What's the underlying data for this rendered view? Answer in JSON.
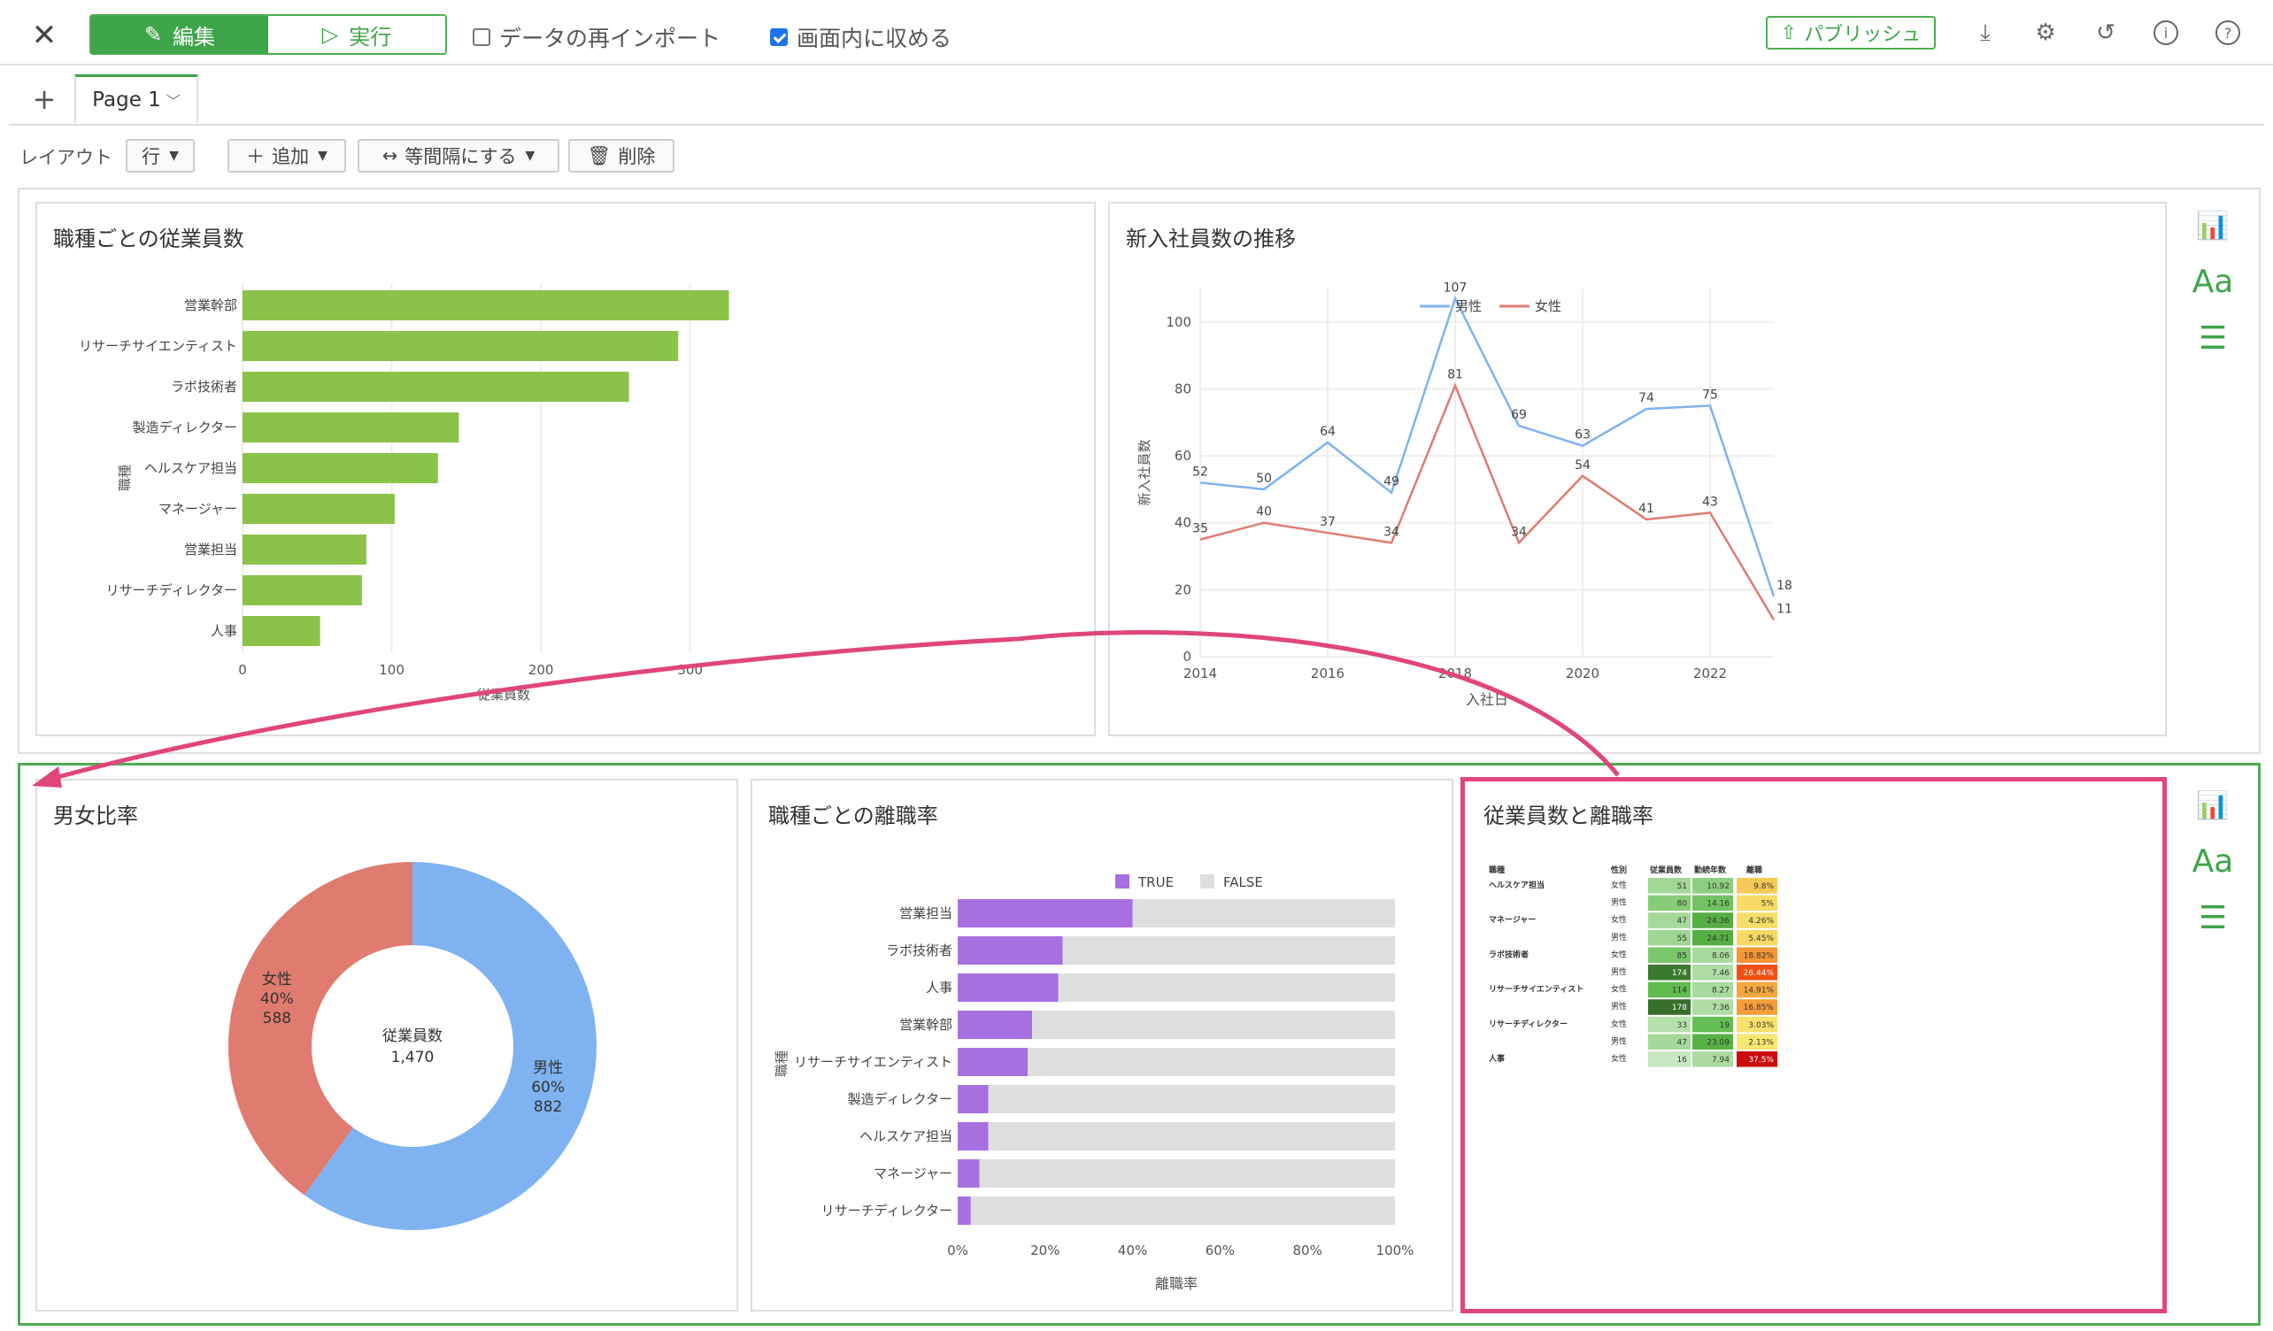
{
  "toolbar": {
    "close_icon": "close-icon",
    "edit_label": "編集",
    "run_label": "実行",
    "reimport_label": "データの再インポート",
    "reimport_checked": false,
    "fit_label": "画面内に収める",
    "fit_checked": true,
    "publish_label": "パブリッシュ",
    "icons": [
      "download-icon",
      "gear-icon",
      "history-icon",
      "info-icon",
      "help-icon"
    ]
  },
  "tabs": {
    "add_label": "+",
    "page_label": "Page 1"
  },
  "layout_bar": {
    "label": "レイアウト",
    "row_label": "行",
    "add_label": "追加",
    "equal_label": "等間隔にする",
    "delete_label": "削除"
  },
  "side_tools": {
    "chart_icon": "bar-chart-icon",
    "text_label": "Aa",
    "menu_icon": "hamburger-icon"
  },
  "colors": {
    "accent": "#3fa54a",
    "highlight": "#e0457b",
    "bar_green": "#8bc34a",
    "male": "#7fb2f0",
    "female": "#e07b70",
    "purple": "#a86fe0",
    "gray": "#dedede"
  },
  "cards": {
    "c1_title": "職種ごとの従業員数",
    "c2_title": "新入社員数の推移",
    "c3_title": "男女比率",
    "c4_title": "職種ごとの離職率",
    "c5_title": "従業員数と離職率"
  },
  "chart_data": [
    {
      "id": "employees_by_job",
      "type": "bar",
      "orientation": "horizontal",
      "categories": [
        "営業幹部",
        "リサーチサイエンティスト",
        "ラボ技術者",
        "製造ディレクター",
        "ヘルスケア担当",
        "マネージャー",
        "営業担当",
        "リサーチディレクター",
        "人事"
      ],
      "values": [
        326,
        292,
        259,
        145,
        131,
        102,
        83,
        80,
        52
      ],
      "xlabel": "従業員数",
      "ylabel": "職種",
      "xlim": [
        0,
        350
      ],
      "xticks": [
        0,
        100,
        200,
        300
      ]
    },
    {
      "id": "new_hires_trend",
      "type": "line",
      "x": [
        2014,
        2015,
        2016,
        2017,
        2018,
        2019,
        2020,
        2021,
        2022,
        2023
      ],
      "series": [
        {
          "name": "男性",
          "values": [
            52,
            50,
            64,
            49,
            107,
            69,
            63,
            74,
            75,
            18
          ]
        },
        {
          "name": "女性",
          "values": [
            35,
            40,
            37,
            34,
            81,
            34,
            54,
            41,
            43,
            11
          ]
        }
      ],
      "xticks": [
        2014,
        2016,
        2018,
        2020,
        2022
      ],
      "yticks": [
        0,
        20,
        40,
        60,
        80,
        100
      ],
      "ylim": [
        0,
        110
      ],
      "xlabel": "入社日",
      "ylabel": "新入社員数",
      "legend": "top"
    },
    {
      "id": "gender_ratio",
      "type": "pie",
      "donut": true,
      "center_label": "従業員数",
      "center_value": "1,470",
      "slices": [
        {
          "name": "男性",
          "percent": "60%",
          "value": "882"
        },
        {
          "name": "女性",
          "percent": "40%",
          "value": "588"
        }
      ]
    },
    {
      "id": "attrition_by_job",
      "type": "bar",
      "orientation": "horizontal",
      "stacked": "percent",
      "categories": [
        "営業担当",
        "ラボ技術者",
        "人事",
        "営業幹部",
        "リサーチサイエンティスト",
        "製造ディレクター",
        "ヘルスケア担当",
        "マネージャー",
        "リサーチディレクター"
      ],
      "series": [
        {
          "name": "TRUE",
          "values": [
            40,
            24,
            23,
            17,
            16,
            7,
            7,
            5,
            3
          ]
        },
        {
          "name": "FALSE",
          "values": [
            60,
            76,
            77,
            83,
            84,
            93,
            93,
            95,
            97
          ]
        }
      ],
      "xticks": [
        "0%",
        "20%",
        "40%",
        "60%",
        "80%",
        "100%"
      ],
      "xlabel": "離職率",
      "ylabel": "職種",
      "legend": "top"
    },
    {
      "id": "heatmap_table",
      "type": "table",
      "columns": [
        "職種",
        "性別",
        "従業員数",
        "勤続年数",
        "離職"
      ],
      "rows": [
        {
          "job": "ヘルスケア担当",
          "sex": "女性",
          "emp": "51",
          "years": "10.92",
          "rate": "9.8%",
          "e": 0.28,
          "y": 0.55,
          "r": 0.22
        },
        {
          "job": "",
          "sex": "男性",
          "emp": "80",
          "years": "14.16",
          "rate": "5%",
          "e": 0.42,
          "y": 0.75,
          "r": 0.12
        },
        {
          "job": "マネージャー",
          "sex": "女性",
          "emp": "47",
          "years": "24.36",
          "rate": "4.26%",
          "e": 0.26,
          "y": 1.0,
          "r": 0.1
        },
        {
          "job": "",
          "sex": "男性",
          "emp": "55",
          "years": "24.71",
          "rate": "5.45%",
          "e": 0.3,
          "y": 1.0,
          "r": 0.13
        },
        {
          "job": "ラボ技術者",
          "sex": "女性",
          "emp": "85",
          "years": "8.06",
          "rate": "18.82%",
          "e": 0.48,
          "y": 0.35,
          "r": 0.45
        },
        {
          "job": "",
          "sex": "男性",
          "emp": "174",
          "years": "7.46",
          "rate": "26.44%",
          "e": 0.95,
          "y": 0.3,
          "r": 0.7
        },
        {
          "job": "リサーチサイエンティスト",
          "sex": "女性",
          "emp": "114",
          "years": "8.27",
          "rate": "14.91%",
          "e": 0.62,
          "y": 0.36,
          "r": 0.38
        },
        {
          "job": "",
          "sex": "男性",
          "emp": "178",
          "years": "7.36",
          "rate": "16.85%",
          "e": 1.0,
          "y": 0.3,
          "r": 0.42
        },
        {
          "job": "リサーチディレクター",
          "sex": "女性",
          "emp": "33",
          "years": "19",
          "rate": "3.03%",
          "e": 0.18,
          "y": 0.85,
          "r": 0.08
        },
        {
          "job": "",
          "sex": "男性",
          "emp": "47",
          "years": "23.09",
          "rate": "2.13%",
          "e": 0.26,
          "y": 0.98,
          "r": 0.05
        },
        {
          "job": "人事",
          "sex": "女性",
          "emp": "16",
          "years": "7.94",
          "rate": "37.5%",
          "e": 0.08,
          "y": 0.33,
          "r": 1.0
        }
      ]
    }
  ]
}
